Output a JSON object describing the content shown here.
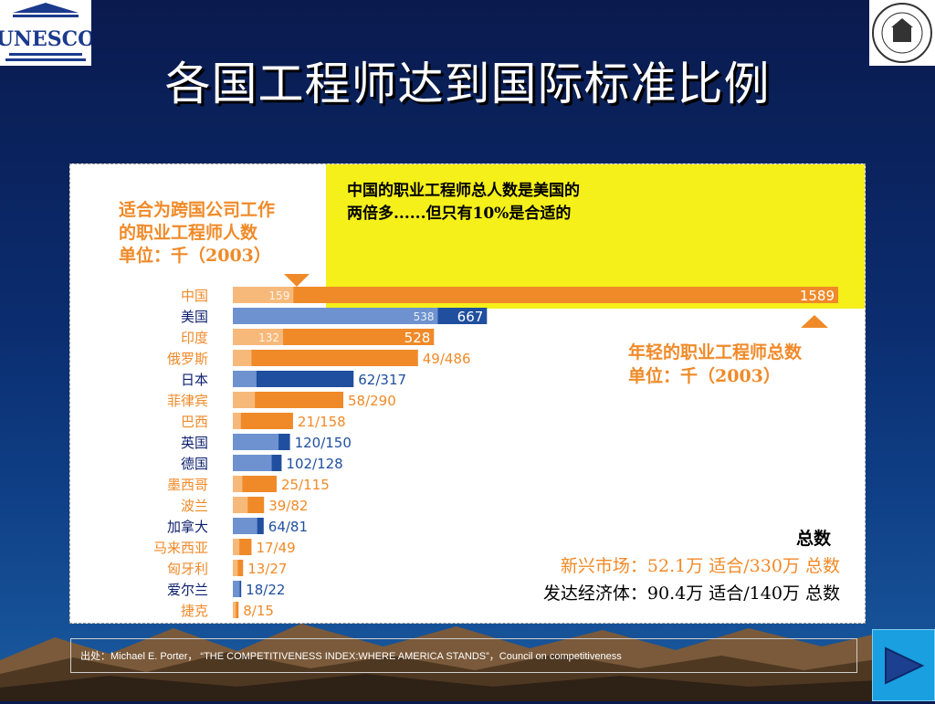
{
  "slide": {
    "title": "各国工程师达到国际标准比例",
    "logo_left_text": "UNESCO",
    "callout": [
      "中国的职业工程师总人数是美国的",
      "两倍多......但只有10%是合适的"
    ],
    "left_label": [
      "适合为跨国公司工作",
      "的职业工程师人数",
      "单位：千（2003）"
    ],
    "right_label": [
      "年轻的职业工程师总数",
      "单位：千（2003）"
    ],
    "total_heading": "总数",
    "summary": [
      {
        "text": "新兴市场：52.1万 适合/330万",
        "suffix": "总数",
        "color": "#f08a28"
      },
      {
        "text": "发达经济体：90.4万 适合/140万",
        "suffix": "总数",
        "color": "#000000"
      }
    ],
    "footer": "出处：Michael E. Porter， “THE COMPETITIVENESS INDEX:WHERE AMERICA STANDS”，Council on competitiveness",
    "colors": {
      "emerging": "#f08a28",
      "emerging_light": "#f7b97a",
      "developed": "#1f4f9e",
      "developed_light": "#6e92cf",
      "callout": "#f5ef1a"
    }
  },
  "chart_data": {
    "type": "bar",
    "orientation": "horizontal",
    "xlim": [
      0,
      1589
    ],
    "categories": [
      "中国",
      "美国",
      "印度",
      "俄罗斯",
      "日本",
      "菲律宾",
      "巴西",
      "英国",
      "德国",
      "墨西哥",
      "波兰",
      "加拿大",
      "马来西亚",
      "匈牙利",
      "爱尔兰",
      "捷克"
    ],
    "group": [
      "emerging",
      "developed",
      "emerging",
      "emerging",
      "developed",
      "emerging",
      "emerging",
      "developed",
      "developed",
      "emerging",
      "emerging",
      "developed",
      "emerging",
      "emerging",
      "developed",
      "emerging"
    ],
    "series": [
      {
        "name": "适合为跨国公司工作的职业工程师人数",
        "values": [
          159,
          538,
          132,
          49,
          62,
          58,
          21,
          120,
          102,
          25,
          39,
          64,
          17,
          13,
          18,
          8
        ]
      },
      {
        "name": "年轻的职业工程师总数",
        "values": [
          1589,
          667,
          528,
          486,
          317,
          290,
          158,
          150,
          128,
          115,
          82,
          81,
          49,
          27,
          22,
          15
        ]
      }
    ],
    "labels": [
      "159|1589",
      "538|667",
      "132|528",
      "49/486",
      "62/317",
      "58/290",
      "21/158",
      "120/150",
      "102/128",
      "25/115",
      "39/82",
      "64/81",
      "17/49",
      "13/27",
      "18/22",
      "8/15"
    ]
  }
}
